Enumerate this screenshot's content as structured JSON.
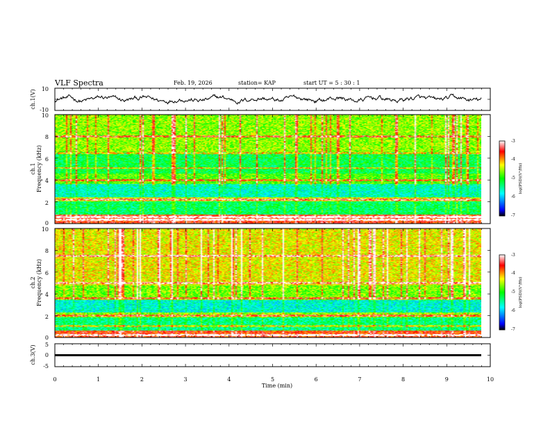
{
  "header": {
    "title": "VLF Spectra",
    "date": "Feb. 19, 2026",
    "station": "station= KAP",
    "start": "start  UT =   5  : 30 : 1"
  },
  "colors": {
    "axis": "#000000",
    "trace": "#000000",
    "colormap": [
      "#000000",
      "#0000ff",
      "#00ffff",
      "#00ff00",
      "#ffff00",
      "#ff0000",
      "#ffffff"
    ]
  },
  "chart_data": [
    {
      "type": "line",
      "id": "ch1v",
      "ylabel": "ch.1(V)",
      "ylim": [
        -10,
        10
      ],
      "yticks": [
        "10",
        "-10"
      ],
      "xlim": [
        0,
        10
      ],
      "description_values": "band-limited noise, mean ~0 V, amplitude ~ +/-5 V"
    },
    {
      "type": "heatmap",
      "id": "ch1",
      "ylabel_top": "ch.1",
      "ylabel": "Frequency  (kHz)",
      "ylim": [
        0,
        10
      ],
      "yticks": [
        "0",
        "2",
        "4",
        "6",
        "8",
        "10"
      ],
      "xlim": [
        0,
        9.8
      ],
      "colorbar": {
        "label": "log(PSD)(V²/Hz)",
        "range": [
          -7,
          -3
        ],
        "ticks": [
          "-3",
          "-4",
          "-5",
          "-6",
          "-7"
        ]
      },
      "bands_khz": [
        {
          "from": 0,
          "to": 0.8,
          "level": -3.6
        },
        {
          "from": 0.8,
          "to": 2.0,
          "level": -5.3
        },
        {
          "from": 2.0,
          "to": 2.4,
          "level": -4.4
        },
        {
          "from": 2.4,
          "to": 3.6,
          "level": -5.6
        },
        {
          "from": 3.6,
          "to": 4.6,
          "level": -4.8
        },
        {
          "from": 4.6,
          "to": 6.6,
          "level": -5.2
        },
        {
          "from": 6.6,
          "to": 10,
          "level": -4.6
        }
      ],
      "lines_khz": [
        0.3,
        0.6,
        2.2,
        4.0,
        5.1,
        6.5,
        8.0
      ]
    },
    {
      "type": "heatmap",
      "id": "ch2",
      "ylabel_top": "ch.2",
      "ylabel": "Frequency  (kHz)",
      "ylim": [
        0,
        10
      ],
      "yticks": [
        "0",
        "2",
        "4",
        "6",
        "8",
        "10"
      ],
      "xlim": [
        0,
        9.8
      ],
      "colorbar": {
        "label": "log(PSD)(V²/Hz)",
        "range": [
          -7,
          -3
        ],
        "ticks": [
          "-3",
          "-4",
          "-5",
          "-6",
          "-7"
        ]
      },
      "bands_khz": [
        {
          "from": 0,
          "to": 0.6,
          "level": -3.7
        },
        {
          "from": 0.6,
          "to": 1.8,
          "level": -5.4
        },
        {
          "from": 1.8,
          "to": 2.3,
          "level": -4.6
        },
        {
          "from": 2.3,
          "to": 3.4,
          "level": -5.7
        },
        {
          "from": 3.4,
          "to": 4.8,
          "level": -4.7
        },
        {
          "from": 4.8,
          "to": 10,
          "level": -4.3
        }
      ],
      "lines_khz": [
        0.2,
        1.0,
        2.0,
        3.6,
        5.0,
        7.5
      ]
    },
    {
      "type": "line",
      "id": "ch3v",
      "ylabel": "ch.3(V)",
      "ylim": [
        -5,
        5
      ],
      "yticks": [
        "5",
        "0",
        "-5"
      ],
      "xlim": [
        0,
        10
      ],
      "constant_value": 0,
      "trace_thickness_v": 0.9
    }
  ],
  "xaxis": {
    "label": "Time  (min)",
    "ticks": [
      "0",
      "1",
      "2",
      "3",
      "4",
      "5",
      "6",
      "7",
      "8",
      "9",
      "10"
    ],
    "range": [
      0,
      10
    ]
  }
}
